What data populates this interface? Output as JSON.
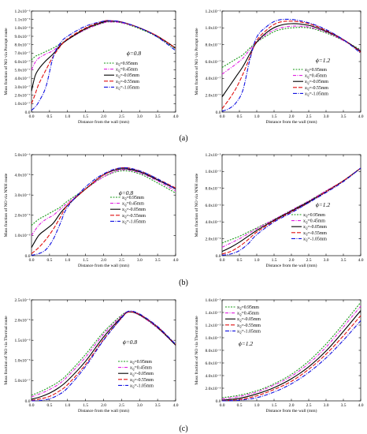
{
  "captions": [
    "(a)",
    "(b)",
    "(c)"
  ],
  "legend_entries": [
    "0.95mm",
    "0.45mm",
    "-0.05mm",
    "-0.55mm",
    "-1.05mm"
  ],
  "legend_symbol": "x",
  "legend_symbol_sub": "Q",
  "legend_eq": "=",
  "series_styles": [
    {
      "color": "#1a9a1a",
      "dash": "2,1.5"
    },
    {
      "color": "#e020e0",
      "dash": "4,1.5,1,1.5"
    },
    {
      "color": "#000000",
      "dash": ""
    },
    {
      "color": "#e01010",
      "dash": "5,2"
    },
    {
      "color": "#1010e0",
      "dash": "5,1.5,1,1.5"
    }
  ],
  "chart_data": [
    {
      "type": "line",
      "panel": "a-left",
      "phi": "ϕ=0.8",
      "xlabel": "Distance from the wall (mm)",
      "ylabel": "Mass fraction of NO via Prompt route",
      "xlim": [
        0,
        4
      ],
      "ylim": [
        0,
        1.2e-06
      ],
      "xticks": [
        "0.0",
        "0.5",
        "1.0",
        "1.5",
        "2.0",
        "2.5",
        "3.0",
        "3.5",
        "4.0"
      ],
      "yticks": [
        "0.0",
        "1.0x10⁻⁷",
        "2.0x10⁻⁷",
        "3.0x10⁻⁷",
        "4.0x10⁻⁷",
        "5.0x10⁻⁷",
        "6.0x10⁻⁷",
        "7.0x10⁻⁷",
        "8.0x10⁻⁷",
        "9.0x10⁻⁷",
        "1.0x10⁻⁶",
        "1.1x10⁻⁶",
        "1.2x10⁻⁶"
      ],
      "x": [
        0,
        0.1,
        0.2,
        0.4,
        0.6,
        0.8,
        1.0,
        1.5,
        2.0,
        2.2,
        2.5,
        3.0,
        3.5,
        4.0
      ],
      "series": [
        {
          "values": [
            6.2e-07,
            6.6e-07,
            6.8e-07,
            7.2e-07,
            7.6e-07,
            8.1e-07,
            8.6e-07,
            9.8e-07,
            1.06e-06,
            1.07e-06,
            1.06e-06,
            9.9e-07,
            8.9e-07,
            7.5e-07
          ]
        },
        {
          "values": [
            5e-07,
            5.9e-07,
            6.4e-07,
            6.9e-07,
            7.3e-07,
            8e-07,
            8.6e-07,
            9.8e-07,
            1.06e-06,
            1.07e-06,
            1.06e-06,
            1e-06,
            9e-07,
            7.6e-07
          ]
        },
        {
          "values": [
            2.5e-07,
            4.3e-07,
            5.1e-07,
            6.1e-07,
            6.9e-07,
            7.9e-07,
            8.6e-07,
            9.9e-07,
            1.07e-06,
            1.08e-06,
            1.07e-06,
            1e-06,
            9e-07,
            7.6e-07
          ]
        },
        {
          "values": [
            1e-07,
            2.1e-07,
            3.3e-07,
            5e-07,
            6.6e-07,
            7.8e-07,
            8.7e-07,
            1e-06,
            1.08e-06,
            1.085e-06,
            1.07e-06,
            1e-06,
            9e-07,
            7.6e-07
          ]
        },
        {
          "values": [
            2e-08,
            6e-08,
            1.2e-07,
            3e-07,
            6.5e-07,
            8.2e-07,
            9e-07,
            1.02e-06,
            1.08e-06,
            1.085e-06,
            1.07e-06,
            1e-06,
            8.9e-07,
            7.3e-07
          ]
        }
      ]
    },
    {
      "type": "line",
      "panel": "a-right",
      "phi": "ϕ=1.2",
      "xlabel": "Distance from the wall (mm)",
      "ylabel": "Mass fraction of NO via Prompt route",
      "xlim": [
        0,
        4
      ],
      "ylim": [
        0,
        1.2e-06
      ],
      "xticks": [
        "0.0",
        "0.5",
        "1.0",
        "1.5",
        "2.0",
        "2.5",
        "3.0",
        "3.5",
        "4.0"
      ],
      "yticks": [
        "0.0",
        "2.0x10⁻⁷",
        "4.0x10⁻⁷",
        "6.0x10⁻⁷",
        "8.0x10⁻⁷",
        "1.0x10⁻⁶",
        "1.2x10⁻⁶"
      ],
      "x": [
        0,
        0.2,
        0.4,
        0.6,
        0.8,
        1.0,
        1.3,
        1.6,
        2.0,
        2.5,
        3.0,
        3.5,
        4.0
      ],
      "series": [
        {
          "values": [
            5.3e-07,
            5.8e-07,
            6.3e-07,
            6.8e-07,
            7.6e-07,
            8.3e-07,
            9.1e-07,
            9.7e-07,
            1e-06,
            1e-06,
            9.4e-07,
            8.5e-07,
            7.4e-07
          ]
        },
        {
          "values": [
            4.5e-07,
            5.1e-07,
            5.7e-07,
            6.4e-07,
            7.4e-07,
            8.3e-07,
            9.3e-07,
            9.9e-07,
            1.02e-06,
            1.01e-06,
            9.5e-07,
            8.5e-07,
            7.3e-07
          ]
        },
        {
          "values": [
            1.8e-07,
            3e-07,
            4.2e-07,
            5.4e-07,
            6.9e-07,
            8.3e-07,
            9.5e-07,
            1.02e-06,
            1.05e-06,
            1.03e-06,
            9.6e-07,
            8.6e-07,
            7.2e-07
          ]
        },
        {
          "values": [
            4e-08,
            1.5e-07,
            2.8e-07,
            4.5e-07,
            6.5e-07,
            8.5e-07,
            9.8e-07,
            1.06e-06,
            1.08e-06,
            1.05e-06,
            9.7e-07,
            8.6e-07,
            7.1e-07
          ]
        },
        {
          "values": [
            1e-08,
            4e-08,
            1.1e-07,
            2.6e-07,
            6.2e-07,
            8.9e-07,
            1.02e-06,
            1.09e-06,
            1.1e-06,
            1.06e-06,
            9.8e-07,
            8.6e-07,
            7e-07
          ]
        }
      ]
    },
    {
      "type": "line",
      "panel": "b-left",
      "phi": "ϕ=0.8",
      "xlabel": "Distance from the wall (mm)",
      "ylabel": "Mass fraction of NO via NNH route",
      "xlim": [
        0,
        4
      ],
      "ylim": [
        0,
        5e-06
      ],
      "xticks": [
        "0.0",
        "0.5",
        "1.0",
        "1.5",
        "2.0",
        "2.5",
        "3.0",
        "3.5",
        "4.0"
      ],
      "yticks": [
        "0.0",
        "1.0x10⁻⁶",
        "2.0x10⁻⁶",
        "3.0x10⁻⁶",
        "4.0x10⁻⁶",
        "5.0x10⁻⁶"
      ],
      "x": [
        0,
        0.2,
        0.4,
        0.6,
        0.8,
        1.0,
        1.5,
        2.0,
        2.5,
        3.0,
        3.5,
        4.0
      ],
      "series": [
        {
          "values": [
            1.5e-06,
            1.8e-06,
            2e-06,
            2.2e-06,
            2.4e-06,
            2.7e-06,
            3.3e-06,
            3.9e-06,
            4.2e-06,
            4.05e-06,
            3.6e-06,
            3.1e-06
          ]
        },
        {
          "values": [
            1e-06,
            1.5e-06,
            1.8e-06,
            2e-06,
            2.3e-06,
            2.6e-06,
            3.3e-06,
            3.9e-06,
            4.25e-06,
            4.1e-06,
            3.7e-06,
            3.2e-06
          ]
        },
        {
          "values": [
            4e-07,
            1e-06,
            1.3e-06,
            1.6e-06,
            2.1e-06,
            2.5e-06,
            3.3e-06,
            4e-06,
            4.3e-06,
            4.15e-06,
            3.75e-06,
            3.3e-06
          ]
        },
        {
          "values": [
            1e-07,
            4e-07,
            8e-07,
            1.3e-06,
            1.9e-06,
            2.5e-06,
            3.3e-06,
            4e-06,
            4.35e-06,
            4.2e-06,
            3.8e-06,
            3.35e-06
          ]
        },
        {
          "values": [
            2e-08,
            1e-07,
            3e-07,
            8e-07,
            1.6e-06,
            2.4e-06,
            3.4e-06,
            4.05e-06,
            4.35e-06,
            4.2e-06,
            3.8e-06,
            3.3e-06
          ]
        }
      ]
    },
    {
      "type": "line",
      "panel": "b-right",
      "phi": "ϕ=1.2",
      "xlabel": "Distance from the wall (mm)",
      "ylabel": "Mass fraction of NO via NNH route",
      "xlim": [
        0,
        4
      ],
      "ylim": [
        0,
        1.2e-05
      ],
      "xticks": [
        "0.0",
        "0.5",
        "1.0",
        "1.5",
        "2.0",
        "2.5",
        "3.0",
        "3.5",
        "4.0"
      ],
      "yticks": [
        "0.0",
        "2.0x10⁻⁶",
        "4.0x10⁻⁶",
        "6.0x10⁻⁶",
        "8.0x10⁻⁶",
        "1.0x10⁻⁵",
        "1.2x10⁻⁵"
      ],
      "x": [
        0,
        0.25,
        0.5,
        0.75,
        1.0,
        1.5,
        2.0,
        2.5,
        3.0,
        3.5,
        4.0
      ],
      "series": [
        {
          "values": [
            1.5e-06,
            1.9e-06,
            2.3e-06,
            2.8e-06,
            3.3e-06,
            4.3e-06,
            5.4e-06,
            6.5e-06,
            7.7e-06,
            8.9e-06,
            1.04e-05
          ]
        },
        {
          "values": [
            1e-06,
            1.5e-06,
            2e-06,
            2.6e-06,
            3.2e-06,
            4.3e-06,
            5.4e-06,
            6.5e-06,
            7.7e-06,
            8.9e-06,
            1.04e-05
          ]
        },
        {
          "values": [
            5e-07,
            1e-06,
            1.6e-06,
            2.3e-06,
            3e-06,
            4.2e-06,
            5.3e-06,
            6.4e-06,
            7.6e-06,
            8.9e-06,
            1.04e-05
          ]
        },
        {
          "values": [
            2e-07,
            5e-07,
            1.1e-06,
            1.9e-06,
            2.8e-06,
            4.1e-06,
            5.2e-06,
            6.3e-06,
            7.6e-06,
            8.9e-06,
            1.04e-05
          ]
        },
        {
          "values": [
            5e-08,
            2e-07,
            6e-07,
            1.4e-06,
            2.5e-06,
            4e-06,
            5.1e-06,
            6.3e-06,
            7.5e-06,
            8.8e-06,
            1.04e-05
          ]
        }
      ]
    },
    {
      "type": "line",
      "panel": "c-left",
      "phi": "ϕ=0.8",
      "xlabel": "Distance from the wall (mm)",
      "ylabel": "Mass fraction of NO via Thermal route",
      "xlim": [
        0,
        4
      ],
      "ylim": [
        0,
        2.5e-06
      ],
      "xticks": [
        "0.0",
        "0.5",
        "1.0",
        "1.5",
        "2.0",
        "2.5",
        "3.0",
        "3.5",
        "4.0"
      ],
      "yticks": [
        "0.0",
        "5.0x10⁻⁷",
        "1.0x10⁻⁶",
        "1.5x10⁻⁶",
        "2.0x10⁻⁶",
        "2.5x10⁻⁶"
      ],
      "x": [
        0,
        0.25,
        0.5,
        0.75,
        1.0,
        1.5,
        2.0,
        2.5,
        2.7,
        3.0,
        3.5,
        4.0
      ],
      "series": [
        {
          "values": [
            1.4e-07,
            2.3e-07,
            3.4e-07,
            4.7e-07,
            6.6e-07,
            1.15e-06,
            1.7e-06,
            2.12e-06,
            2.2e-06,
            2.12e-06,
            1.8e-06,
            1.38e-06
          ]
        },
        {
          "values": [
            1e-07,
            1.8e-07,
            2.8e-07,
            4.1e-07,
            6e-07,
            1.08e-06,
            1.65e-06,
            2.1e-06,
            2.2e-06,
            2.12e-06,
            1.8e-06,
            1.38e-06
          ]
        },
        {
          "values": [
            4e-08,
            1e-07,
            1.9e-07,
            3.2e-07,
            5e-07,
            9.8e-07,
            1.58e-06,
            2.07e-06,
            2.2e-06,
            2.13e-06,
            1.82e-06,
            1.38e-06
          ]
        },
        {
          "values": [
            1e-08,
            5e-08,
            1.1e-07,
            2.3e-07,
            4e-07,
            9e-07,
            1.52e-06,
            2.05e-06,
            2.2e-06,
            2.14e-06,
            1.83e-06,
            1.4e-06
          ]
        },
        {
          "values": [
            0.0,
            1e-08,
            5e-08,
            1.5e-07,
            3.2e-07,
            8.5e-07,
            1.5e-06,
            2.05e-06,
            2.22e-06,
            2.15e-06,
            1.84e-06,
            1.4e-06
          ]
        }
      ]
    },
    {
      "type": "line",
      "panel": "c-right",
      "phi": "ϕ=1.2",
      "xlabel": "Distance from the wall (mm)",
      "ylabel": "Mass fraction of NO via Thermal route",
      "xlim": [
        0,
        4
      ],
      "ylim": [
        0,
        1.6e-05
      ],
      "xticks": [
        "0.0",
        "0.5",
        "1.0",
        "1.5",
        "2.0",
        "2.5",
        "3.0",
        "3.5",
        "4.0"
      ],
      "yticks": [
        "0.0",
        "2.0x10⁻⁶",
        "4.0x10⁻⁶",
        "6.0x10⁻⁶",
        "8.0x10⁻⁶",
        "1.0x10⁻⁵",
        "1.2x10⁻⁵",
        "1.4x10⁻⁵",
        "1.6x10⁻⁵"
      ],
      "x": [
        0,
        0.5,
        1.0,
        1.5,
        2.0,
        2.5,
        3.0,
        3.5,
        4.0
      ],
      "series": [
        {
          "values": [
            5e-07,
            9e-07,
            1.6e-06,
            2.7e-06,
            4.2e-06,
            6.3e-06,
            9e-06,
            1.22e-05,
            1.56e-05
          ]
        },
        {
          "values": [
            3e-07,
            7e-07,
            1.4e-06,
            2.5e-06,
            3.9e-06,
            5.9e-06,
            8.5e-06,
            1.17e-05,
            1.5e-05
          ]
        },
        {
          "values": [
            1e-07,
            4e-07,
            1.1e-06,
            2.1e-06,
            3.5e-06,
            5.4e-06,
            7.9e-06,
            1.1e-05,
            1.43e-05
          ]
        },
        {
          "values": [
            3e-08,
            2e-07,
            8e-07,
            1.8e-06,
            3.1e-06,
            5e-06,
            7.4e-06,
            1.03e-05,
            1.35e-05
          ]
        },
        {
          "values": [
            0.0,
            1e-07,
            5e-07,
            1.4e-06,
            2.7e-06,
            4.5e-06,
            6.8e-06,
            9.6e-06,
            1.27e-05
          ]
        }
      ]
    }
  ]
}
